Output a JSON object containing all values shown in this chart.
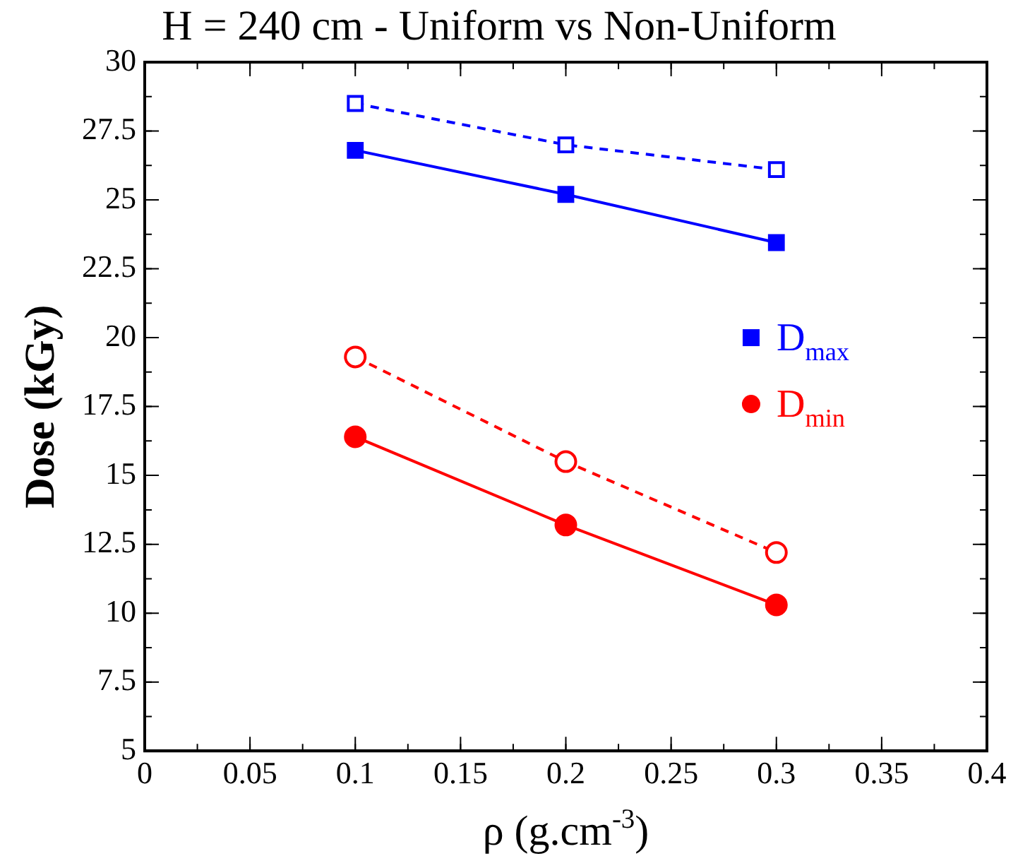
{
  "chart_data": {
    "type": "line",
    "title": "H = 240 cm - Uniform vs Non-Uniform",
    "xlabel": "ρ (g.cm$^{-3}$)",
    "ylabel": "Dose (kGy)",
    "x": [
      0.1,
      0.2,
      0.3
    ],
    "series": [
      {
        "name": "D$_{max}$",
        "color": "#0000ff",
        "values": [
          26.8,
          25.2,
          23.45
        ],
        "marker": "square",
        "line_style": "solid"
      },
      {
        "color": "#0000ff",
        "values": [
          28.5,
          27.0,
          26.1
        ],
        "marker": "square",
        "line_style": "dashed"
      },
      {
        "name": "D$_{min}$",
        "color": "#ff0000",
        "values": [
          16.4,
          13.2,
          10.3
        ],
        "marker": "circle",
        "line_style": "solid"
      },
      {
        "color": "#ff0000",
        "values": [
          19.3,
          15.5,
          12.2
        ],
        "marker": "circle",
        "line_style": "dashed"
      }
    ],
    "xlim": [
      0,
      0.4
    ],
    "xticks": [
      0,
      0.05,
      0.1,
      0.15,
      0.2,
      0.25,
      0.3,
      0.35,
      0.4
    ],
    "ylim": [
      5,
      30
    ],
    "yticks": [
      5,
      7.5,
      10,
      12.5,
      15,
      17.5,
      20,
      22.5,
      25,
      27.5,
      30
    ],
    "grid": false,
    "legend": "right"
  }
}
